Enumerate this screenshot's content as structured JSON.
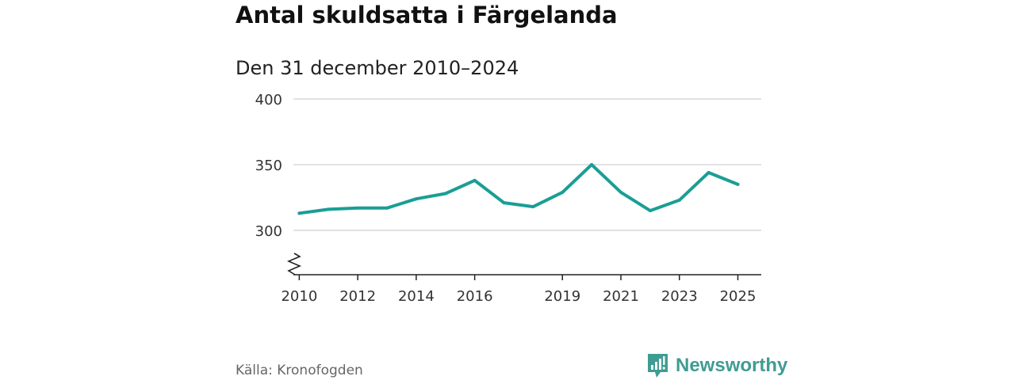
{
  "title": "Antal skuldsatta i Färgelanda",
  "subtitle": "Den 31 december 2010–2024",
  "source": "Källa: Kronofogden",
  "brand": {
    "name": "Newsworthy",
    "icon": "newsworthy-logo-icon",
    "color": "#3f9c93"
  },
  "chart_data": {
    "type": "line",
    "title": "Antal skuldsatta i Färgelanda",
    "subtitle": "Den 31 december 2010–2024",
    "xlabel": "",
    "ylabel": "",
    "xlim": [
      2009.8,
      2025.8
    ],
    "ylim": [
      267,
      400
    ],
    "x_ticks": [
      2010,
      2012,
      2014,
      2016,
      2019,
      2021,
      2023,
      2025
    ],
    "x_tick_labels": [
      "2010",
      "2012",
      "2014",
      "2016",
      "2019",
      "2021",
      "2023",
      "2025"
    ],
    "y_ticks": [
      300,
      350,
      400
    ],
    "y_tick_labels": [
      "300",
      "350",
      "400"
    ],
    "grid": true,
    "axis_break": true,
    "series": [
      {
        "name": "Antal skuldsatta",
        "color": "#1a9e95",
        "x": [
          2010,
          2011,
          2012,
          2013,
          2014,
          2015,
          2016,
          2017,
          2018,
          2019,
          2020,
          2021,
          2022,
          2023,
          2024,
          2025
        ],
        "values": [
          313,
          316,
          317,
          317,
          324,
          328,
          338,
          321,
          318,
          329,
          350,
          329,
          315,
          323,
          344,
          335
        ]
      }
    ]
  }
}
